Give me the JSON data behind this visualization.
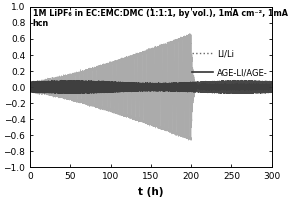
{
  "title": "1M LiPF₆ in EC:EMC:DMC (1:1:1, by vol.), 1mA cm⁻², 1mA hcn",
  "xlabel": "t (h)",
  "xlim": [
    0,
    300
  ],
  "ylim": [
    -1.0,
    1.0
  ],
  "xticks": [
    0,
    50,
    100,
    150,
    200,
    250,
    300
  ],
  "yticks": [
    -1.0,
    -0.8,
    -0.6,
    -0.4,
    -0.2,
    0.0,
    0.2,
    0.4,
    0.6,
    0.8,
    1.0
  ],
  "legend_li": "LI/Li",
  "legend_age": "AGE-LI/AGE-",
  "bg_color": "#ffffff",
  "li_color": "#888888",
  "age_color": "#333333",
  "title_fontsize": 5.8,
  "label_fontsize": 7.5,
  "tick_fontsize": 6.5,
  "legend_fontsize": 6.0
}
